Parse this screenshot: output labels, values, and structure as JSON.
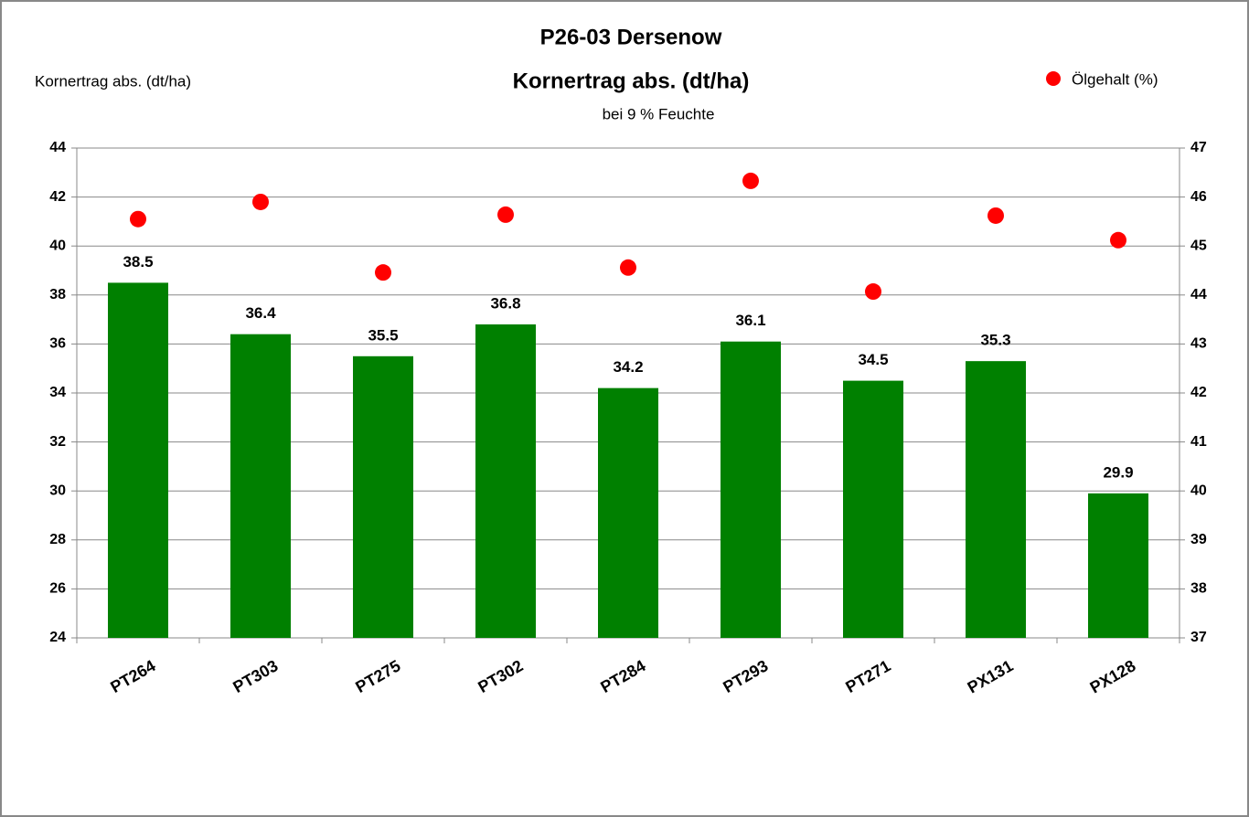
{
  "chart_data": {
    "type": "bar",
    "title": "P26-03 Dersenow",
    "subtitle": "Kornertrag abs. (dt/ha)",
    "note": "bei 9 % Feuchte",
    "ylabel": "Kornertrag abs. (dt/ha)",
    "categories": [
      "PT264",
      "PT303",
      "PT275",
      "PT302",
      "PT284",
      "PT293",
      "PT271",
      "PX131",
      "PX128"
    ],
    "series": [
      {
        "type": "bar",
        "color": "#008000",
        "values": [
          38.5,
          36.4,
          35.5,
          36.8,
          34.2,
          36.1,
          34.5,
          35.3,
          29.9
        ]
      },
      {
        "type": "scatter",
        "name": "Ölgehalt (%)",
        "color": "#ff0000",
        "axis": "y2",
        "values": [
          45.55,
          45.9,
          44.46,
          45.64,
          44.56,
          46.33,
          44.07,
          45.62,
          45.12
        ]
      }
    ],
    "ylim": [
      24,
      44
    ],
    "yticks": [
      24,
      26,
      28,
      30,
      32,
      34,
      36,
      38,
      40,
      42,
      44
    ],
    "y2lim": [
      37,
      47
    ],
    "y2ticks": [
      37,
      38,
      39,
      40,
      41,
      42,
      43,
      44,
      45,
      46,
      47
    ],
    "grid": true,
    "legend": "top-right"
  }
}
